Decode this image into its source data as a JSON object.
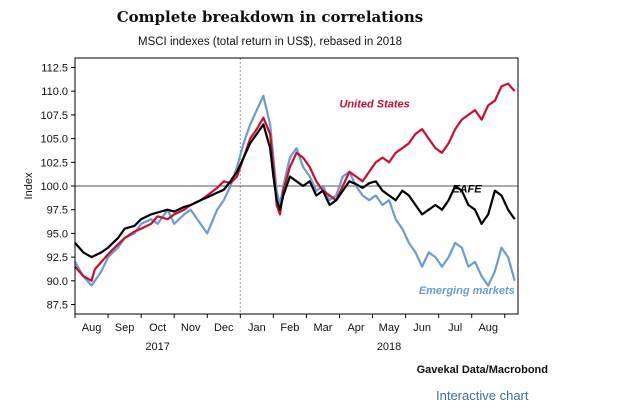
{
  "chart_data": {
    "type": "line",
    "title": "Complete breakdown in correlations",
    "subtitle": "MSCI indexes (total return in US$), rebased in 2018",
    "ylabel": "Index",
    "xlabel": "",
    "ylim": [
      86.5,
      113.5
    ],
    "yticks": [
      "87.5",
      "90.0",
      "92.5",
      "95.0",
      "97.5",
      "100.0",
      "102.5",
      "105.0",
      "107.5",
      "110.0",
      "112.5"
    ],
    "ytick_values": [
      87.5,
      90.0,
      92.5,
      95.0,
      97.5,
      100.0,
      102.5,
      105.0,
      107.5,
      110.0,
      112.5
    ],
    "x_ticks": [
      "Aug",
      "Sep",
      "Oct",
      "Nov",
      "Dec",
      "Jan",
      "Feb",
      "Mar",
      "Apr",
      "May",
      "Jun",
      "Jul",
      "Aug"
    ],
    "x_tick_values": [
      0.5,
      1.5,
      2.5,
      3.5,
      4.5,
      5.5,
      6.5,
      7.5,
      8.5,
      9.5,
      10.5,
      11.5,
      12.5
    ],
    "year_labels": [
      {
        "label": "2017",
        "x": 2.5
      },
      {
        "label": "2018",
        "x": 9.5
      }
    ],
    "xlim": [
      0,
      13.4
    ],
    "x_units": "months since 2017-08-01",
    "reference_line": 100.0,
    "year_divider": 5.0,
    "grid": false,
    "series": [
      {
        "name": "United States",
        "color": "#c8102e",
        "x": [
          0.0,
          0.25,
          0.5,
          0.6,
          0.8,
          1.0,
          1.2,
          1.5,
          1.8,
          2.0,
          2.3,
          2.5,
          2.8,
          3.0,
          3.3,
          3.5,
          3.8,
          4.0,
          4.3,
          4.5,
          4.7,
          4.9,
          5.1,
          5.3,
          5.5,
          5.7,
          5.9,
          6.0,
          6.1,
          6.2,
          6.3,
          6.5,
          6.7,
          6.9,
          7.1,
          7.3,
          7.5,
          7.7,
          7.9,
          8.1,
          8.3,
          8.5,
          8.7,
          8.9,
          9.1,
          9.3,
          9.5,
          9.7,
          9.9,
          10.1,
          10.3,
          10.5,
          10.7,
          10.9,
          11.1,
          11.3,
          11.5,
          11.7,
          11.9,
          12.1,
          12.3,
          12.5,
          12.7,
          12.9,
          13.1,
          13.3
        ],
        "y": [
          91.5,
          90.5,
          90.0,
          91.2,
          92.0,
          92.8,
          93.5,
          94.5,
          95.2,
          95.5,
          96.0,
          96.8,
          96.5,
          97.0,
          97.5,
          98.0,
          98.5,
          99.0,
          99.8,
          100.5,
          100.3,
          101.0,
          103.0,
          105.0,
          106.0,
          107.2,
          105.5,
          102.0,
          98.0,
          97.0,
          99.5,
          102.0,
          103.5,
          103.0,
          102.0,
          100.5,
          99.5,
          99.0,
          98.5,
          100.0,
          101.5,
          101.0,
          100.5,
          101.5,
          102.5,
          103.0,
          102.5,
          103.5,
          104.0,
          104.5,
          105.5,
          106.0,
          105.0,
          104.0,
          103.5,
          104.5,
          106.0,
          107.0,
          107.5,
          108.0,
          107.0,
          108.5,
          109.0,
          110.5,
          110.8,
          110.0
        ]
      },
      {
        "name": "EAFE",
        "color": "#000000",
        "x": [
          0.0,
          0.25,
          0.5,
          0.8,
          1.0,
          1.3,
          1.5,
          1.8,
          2.0,
          2.3,
          2.5,
          2.8,
          3.0,
          3.3,
          3.5,
          3.8,
          4.0,
          4.3,
          4.5,
          4.7,
          4.9,
          5.1,
          5.3,
          5.5,
          5.7,
          5.9,
          6.0,
          6.1,
          6.2,
          6.3,
          6.5,
          6.7,
          6.9,
          7.1,
          7.3,
          7.5,
          7.7,
          7.9,
          8.1,
          8.3,
          8.5,
          8.7,
          8.9,
          9.1,
          9.3,
          9.5,
          9.7,
          9.9,
          10.1,
          10.3,
          10.5,
          10.7,
          10.9,
          11.1,
          11.3,
          11.5,
          11.7,
          11.9,
          12.1,
          12.3,
          12.5,
          12.7,
          12.9,
          13.1,
          13.3
        ],
        "y": [
          94.0,
          93.0,
          92.5,
          93.0,
          93.5,
          94.5,
          95.5,
          95.8,
          96.5,
          97.0,
          97.2,
          97.5,
          97.3,
          97.8,
          98.0,
          98.5,
          98.8,
          99.3,
          99.6,
          100.5,
          101.5,
          103.0,
          104.5,
          105.5,
          106.5,
          104.0,
          101.0,
          98.5,
          97.5,
          99.0,
          101.0,
          100.5,
          100.0,
          100.5,
          99.0,
          99.5,
          98.0,
          98.5,
          99.5,
          100.5,
          100.2,
          99.8,
          100.3,
          100.5,
          99.5,
          99.0,
          98.5,
          99.5,
          99.0,
          98.0,
          97.0,
          97.5,
          98.0,
          97.5,
          98.5,
          100.0,
          99.5,
          98.0,
          97.5,
          96.0,
          97.0,
          99.5,
          99.0,
          97.5,
          96.5
        ]
      },
      {
        "name": "Emerging markets",
        "color": "#6c9bd2",
        "x": [
          0.0,
          0.25,
          0.5,
          0.8,
          1.0,
          1.3,
          1.5,
          1.8,
          2.0,
          2.3,
          2.5,
          2.8,
          3.0,
          3.3,
          3.5,
          3.8,
          4.0,
          4.3,
          4.5,
          4.7,
          4.9,
          5.1,
          5.3,
          5.5,
          5.7,
          5.9,
          6.0,
          6.1,
          6.2,
          6.3,
          6.5,
          6.7,
          6.9,
          7.1,
          7.3,
          7.5,
          7.7,
          7.9,
          8.1,
          8.3,
          8.5,
          8.7,
          8.9,
          9.1,
          9.3,
          9.5,
          9.7,
          9.9,
          10.1,
          10.3,
          10.5,
          10.7,
          10.9,
          11.1,
          11.3,
          11.5,
          11.7,
          11.9,
          12.1,
          12.3,
          12.5,
          12.7,
          12.9,
          13.1,
          13.3
        ],
        "y": [
          92.0,
          90.5,
          89.5,
          91.0,
          92.5,
          93.5,
          94.5,
          95.0,
          96.0,
          96.5,
          96.0,
          97.5,
          96.0,
          97.0,
          97.5,
          96.0,
          95.0,
          97.5,
          98.5,
          100.0,
          102.0,
          104.5,
          106.5,
          108.0,
          109.5,
          106.5,
          103.0,
          99.5,
          98.0,
          100.0,
          103.0,
          104.0,
          102.0,
          101.0,
          99.5,
          100.0,
          98.5,
          99.0,
          101.0,
          101.5,
          100.0,
          99.0,
          98.5,
          99.0,
          98.0,
          98.5,
          96.5,
          95.5,
          94.0,
          93.0,
          91.5,
          93.0,
          92.5,
          91.5,
          92.5,
          94.0,
          93.5,
          91.5,
          92.0,
          90.5,
          89.5,
          91.0,
          93.5,
          92.5,
          90.0
        ]
      }
    ],
    "annotations": [
      {
        "text": "United States",
        "series": "United States"
      },
      {
        "text": "EAFE",
        "series": "EAFE"
      },
      {
        "text": "Emerging markets",
        "series": "Emerging markets"
      }
    ]
  },
  "source": "Gavekal Data/Macrobond",
  "interactive_link": "Interactive chart",
  "colors": {
    "axis": "#000000",
    "reference": "#555555",
    "divider": "#999999",
    "link": "#3a6ea5"
  }
}
